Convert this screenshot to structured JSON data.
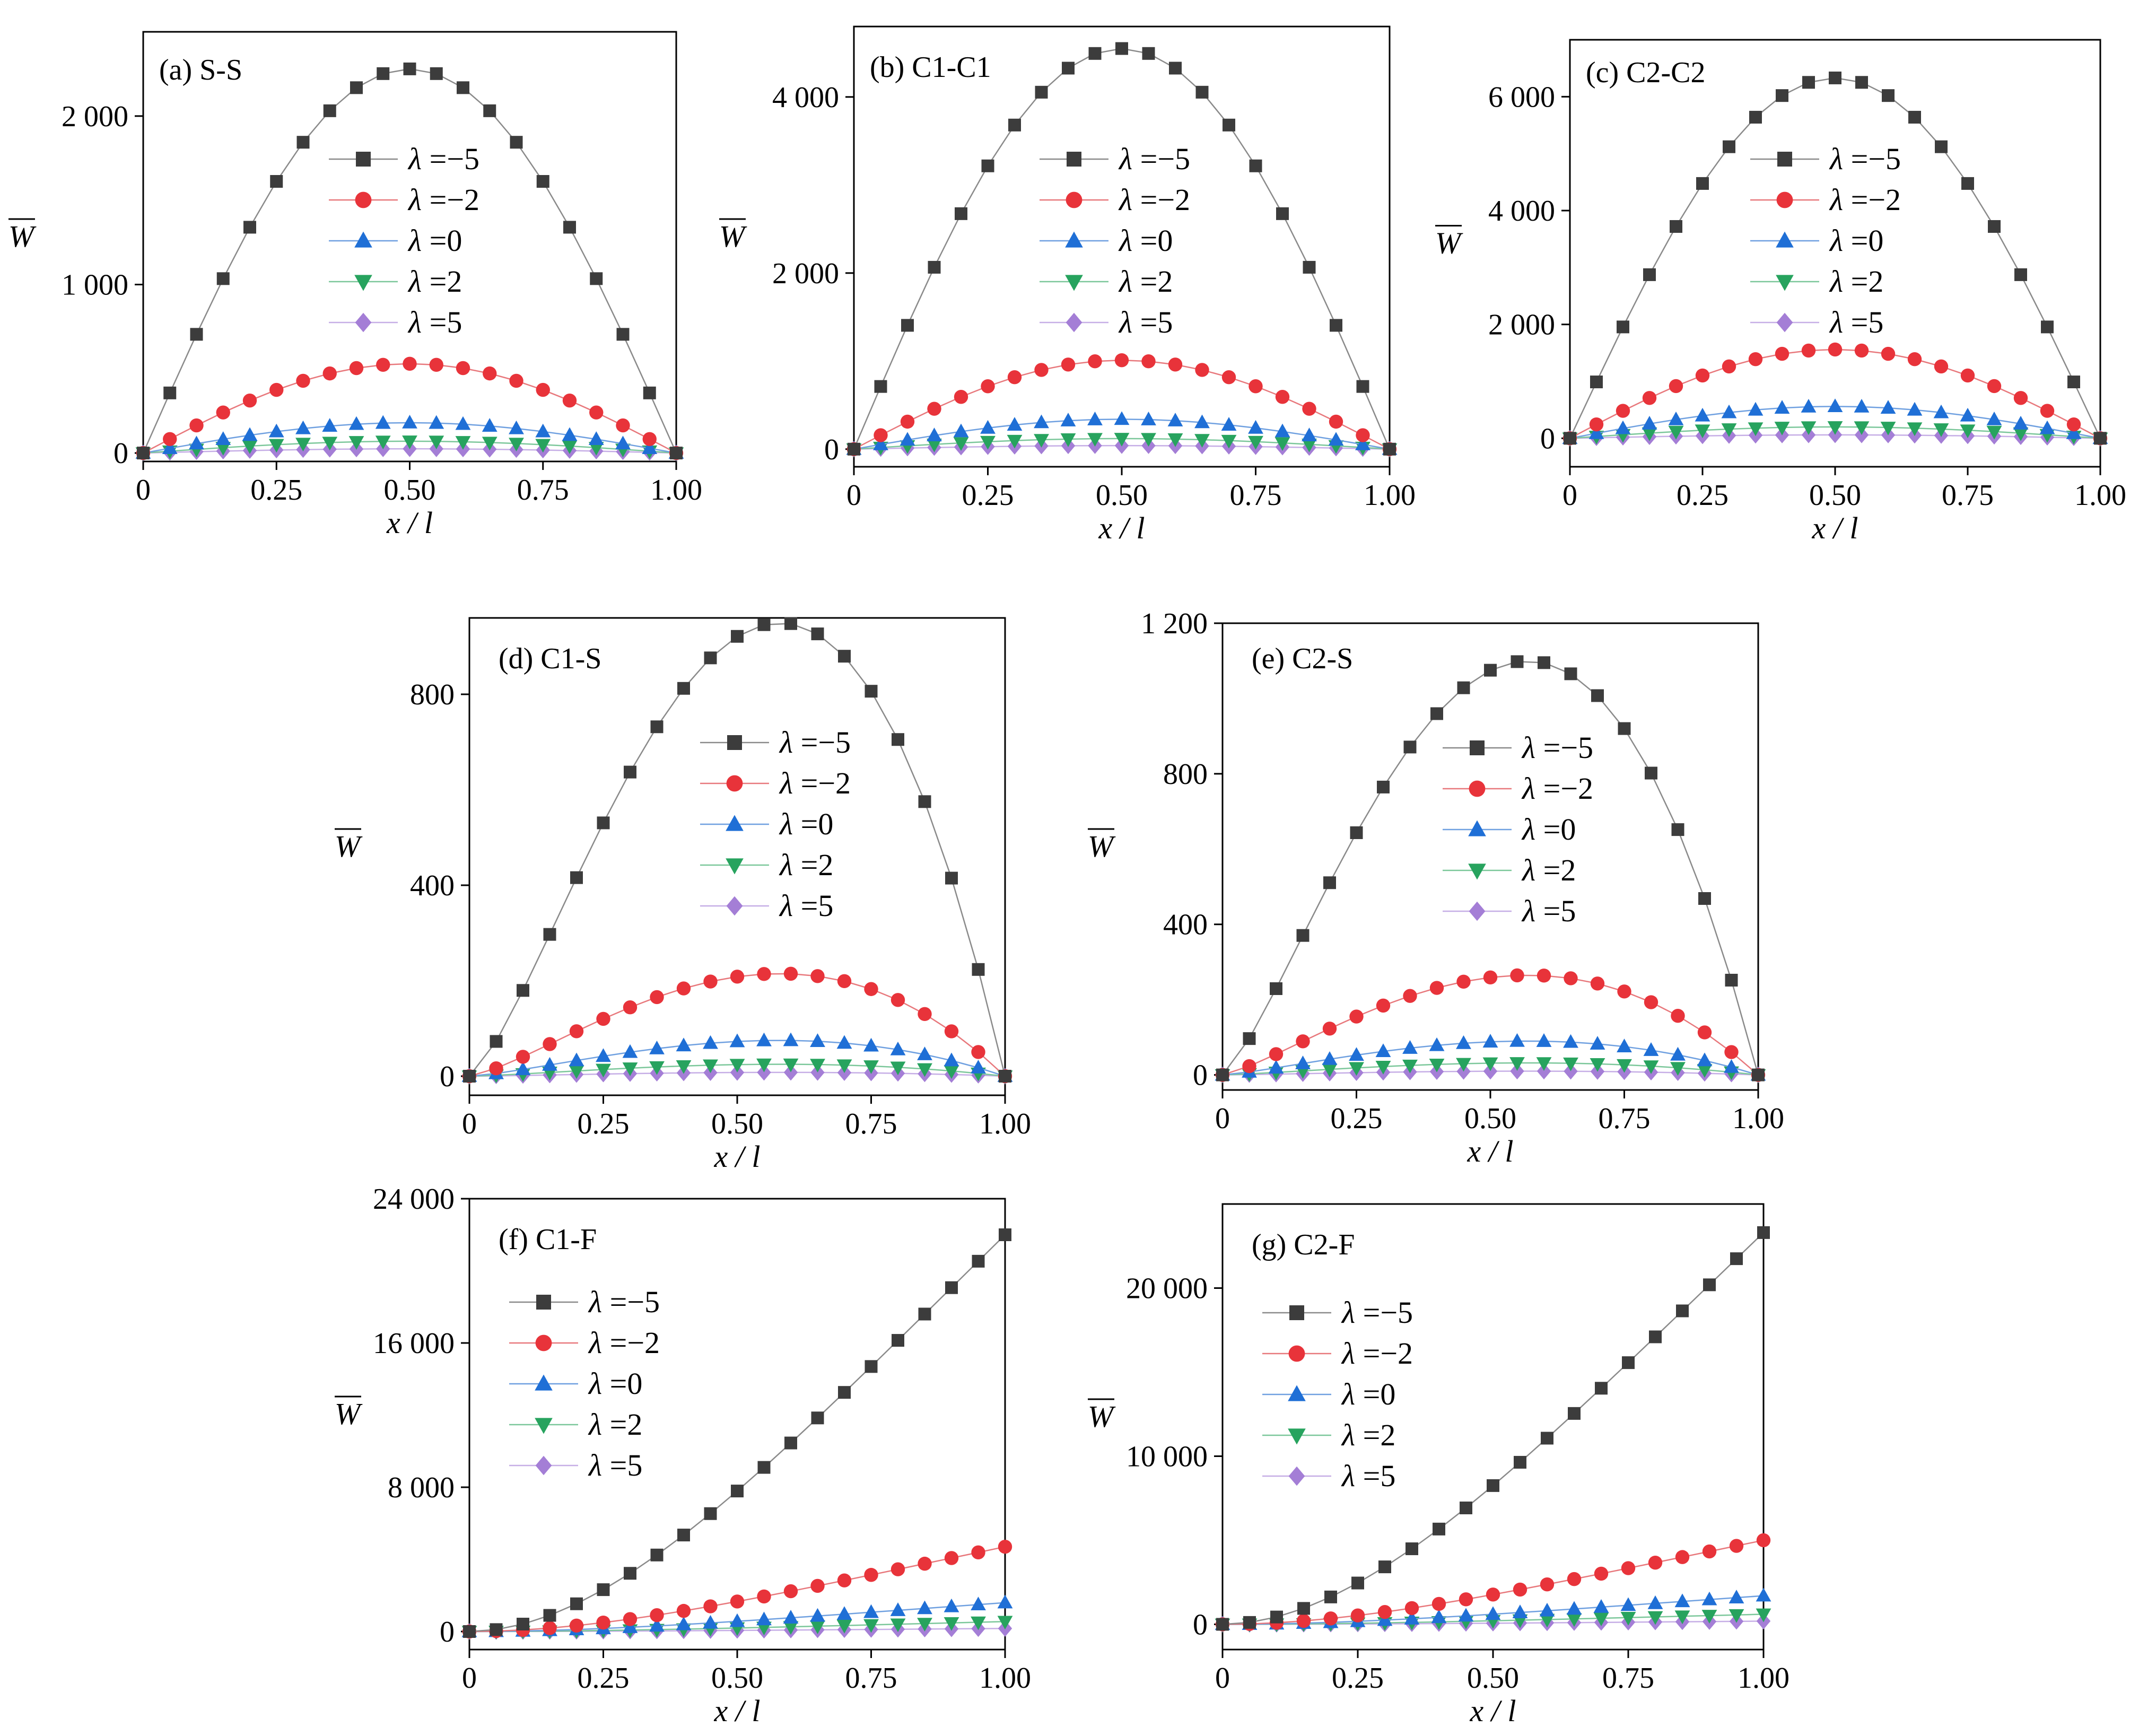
{
  "figure": {
    "x_label": "x / l",
    "y_label": "W"
  },
  "legend": [
    {
      "prefix": "λ",
      "value": "=−5"
    },
    {
      "prefix": "λ",
      "value": "=−2"
    },
    {
      "prefix": "λ",
      "value": "=0"
    },
    {
      "prefix": "λ",
      "value": "=2"
    },
    {
      "prefix": "λ",
      "value": "=5"
    }
  ],
  "series_style": [
    {
      "lambda": -5,
      "color": "#3c3c3c",
      "line": "#8a8a8a",
      "marker": "square"
    },
    {
      "lambda": -2,
      "color": "#e8333a",
      "line": "#e8787c",
      "marker": "circle"
    },
    {
      "lambda": 0,
      "color": "#1f6fd6",
      "line": "#6fa0e0",
      "marker": "triangle-up"
    },
    {
      "lambda": 2,
      "color": "#27a35e",
      "line": "#7bc79a",
      "marker": "triangle-down"
    },
    {
      "lambda": 5,
      "color": "#a47ed6",
      "line": "#c6aee6",
      "marker": "diamond"
    }
  ],
  "chart_data": [
    {
      "type": "line",
      "title": "(a) S-S",
      "xlabel": "x / l",
      "ylabel": "W",
      "xlim": [
        0,
        1
      ],
      "ylim": [
        -50,
        2500
      ],
      "xticks": [
        0,
        0.25,
        0.5,
        0.75,
        1.0
      ],
      "xtick_labels": [
        "0",
        "0.25",
        "0.50",
        "0.75",
        "1.00"
      ],
      "yticks": [
        0,
        1000,
        2000
      ],
      "ytick_labels": [
        "0",
        "1 000",
        "2 000"
      ],
      "shape": "sine",
      "peak_x": 0.5,
      "peaks": [
        2280,
        530,
        180,
        70,
        25
      ],
      "x": [
        0,
        0.05,
        0.1,
        0.15,
        0.2,
        0.25,
        0.3,
        0.35,
        0.4,
        0.45,
        0.5,
        0.55,
        0.6,
        0.65,
        0.7,
        0.75,
        0.8,
        0.85,
        0.9,
        0.95,
        1.0
      ]
    },
    {
      "type": "line",
      "title": "(b) C1-C1",
      "xlabel": "x / l",
      "ylabel": "W",
      "xlim": [
        0,
        1
      ],
      "ylim": [
        -200,
        4800
      ],
      "xticks": [
        0,
        0.25,
        0.5,
        0.75,
        1.0
      ],
      "xtick_labels": [
        "0",
        "0.25",
        "0.50",
        "0.75",
        "1.00"
      ],
      "yticks": [
        0,
        2000,
        4000
      ],
      "ytick_labels": [
        "0",
        "2 000",
        "4 000"
      ],
      "shape": "sine",
      "peak_x": 0.5,
      "peaks": [
        4550,
        1010,
        340,
        120,
        40
      ],
      "x": [
        0,
        0.05,
        0.1,
        0.15,
        0.2,
        0.25,
        0.3,
        0.35,
        0.4,
        0.45,
        0.5,
        0.55,
        0.6,
        0.65,
        0.7,
        0.75,
        0.8,
        0.85,
        0.9,
        0.95,
        1.0
      ]
    },
    {
      "type": "line",
      "title": "(c) C2-C2",
      "xlabel": "x / l",
      "ylabel": "W",
      "xlim": [
        0,
        1
      ],
      "ylim": [
        -500,
        7000
      ],
      "xticks": [
        0,
        0.25,
        0.5,
        0.75,
        1.0
      ],
      "xtick_labels": [
        "0",
        "0.25",
        "0.50",
        "0.75",
        "1.00"
      ],
      "yticks": [
        0,
        2000,
        4000,
        6000
      ],
      "ytick_labels": [
        "0",
        "2 000",
        "4 000",
        "6 000"
      ],
      "shape": "sine",
      "peak_x": 0.5,
      "peaks": [
        6330,
        1560,
        560,
        200,
        60
      ],
      "x": [
        0,
        0.05,
        0.1,
        0.15,
        0.2,
        0.25,
        0.3,
        0.35,
        0.4,
        0.45,
        0.5,
        0.55,
        0.6,
        0.65,
        0.7,
        0.75,
        0.8,
        0.85,
        0.9,
        0.95,
        1.0
      ]
    },
    {
      "type": "line",
      "title": "(d) C1-S",
      "xlabel": "x / l",
      "ylabel": "W",
      "xlim": [
        0,
        1
      ],
      "ylim": [
        -40,
        960
      ],
      "xticks": [
        0,
        0.25,
        0.5,
        0.75,
        1.0
      ],
      "xtick_labels": [
        "0",
        "0.25",
        "0.50",
        "0.75",
        "1.00"
      ],
      "yticks": [
        0,
        400,
        800
      ],
      "ytick_labels": [
        "0",
        "400",
        "800"
      ],
      "shape": "skew",
      "peak_x": 0.58,
      "peaks": [
        950,
        215,
        75,
        25,
        8
      ],
      "x": [
        0,
        0.05,
        0.1,
        0.15,
        0.2,
        0.25,
        0.3,
        0.35,
        0.4,
        0.45,
        0.5,
        0.55,
        0.6,
        0.65,
        0.7,
        0.75,
        0.8,
        0.85,
        0.9,
        0.95,
        1.0
      ]
    },
    {
      "type": "line",
      "title": "(e) C2-S",
      "xlabel": "x / l",
      "ylabel": "W",
      "xlim": [
        0,
        1
      ],
      "ylim": [
        -40,
        1200
      ],
      "xticks": [
        0,
        0.25,
        0.5,
        0.75,
        1.0
      ],
      "xtick_labels": [
        "0",
        "0.25",
        "0.50",
        "0.75",
        "1.00"
      ],
      "yticks": [
        0,
        400,
        800,
        1200
      ],
      "ytick_labels": [
        "0",
        "400",
        "800",
        "1 200"
      ],
      "shape": "skew",
      "peak_x": 0.57,
      "peaks": [
        1100,
        265,
        90,
        32,
        10
      ],
      "x": [
        0,
        0.05,
        0.1,
        0.15,
        0.2,
        0.25,
        0.3,
        0.35,
        0.4,
        0.45,
        0.5,
        0.55,
        0.6,
        0.65,
        0.7,
        0.75,
        0.8,
        0.85,
        0.9,
        0.95,
        1.0
      ]
    },
    {
      "type": "line",
      "title": "(f) C1-F",
      "xlabel": "x / l",
      "ylabel": "W",
      "xlim": [
        0,
        1
      ],
      "ylim": [
        -1000,
        24000
      ],
      "xticks": [
        0,
        0.25,
        0.5,
        0.75,
        1.0
      ],
      "xtick_labels": [
        "0",
        "0.25",
        "0.50",
        "0.75",
        "1.00"
      ],
      "yticks": [
        0,
        8000,
        16000,
        24000
      ],
      "ytick_labels": [
        "0",
        "8 000",
        "16 000",
        "24 000"
      ],
      "shape": "cantilever",
      "peak_x": 1.0,
      "peaks": [
        22000,
        4700,
        1600,
        550,
        170
      ],
      "x": [
        0,
        0.05,
        0.1,
        0.15,
        0.2,
        0.25,
        0.3,
        0.35,
        0.4,
        0.45,
        0.5,
        0.55,
        0.6,
        0.65,
        0.7,
        0.75,
        0.8,
        0.85,
        0.9,
        0.95,
        1.0
      ]
    },
    {
      "type": "line",
      "title": "(g) C2-F",
      "xlabel": "x / l",
      "ylabel": "W",
      "xlim": [
        0,
        1
      ],
      "ylim": [
        -1500,
        25000
      ],
      "xticks": [
        0,
        0.25,
        0.5,
        0.75,
        1.0
      ],
      "xtick_labels": [
        "0",
        "0.25",
        "0.50",
        "0.75",
        "1.00"
      ],
      "yticks": [
        0,
        10000,
        20000
      ],
      "ytick_labels": [
        "0",
        "10 000",
        "20 000"
      ],
      "shape": "cantilever",
      "peak_x": 1.0,
      "peaks": [
        23300,
        5000,
        1700,
        600,
        190
      ],
      "x": [
        0,
        0.05,
        0.1,
        0.15,
        0.2,
        0.25,
        0.3,
        0.35,
        0.4,
        0.45,
        0.5,
        0.55,
        0.6,
        0.65,
        0.7,
        0.75,
        0.8,
        0.85,
        0.9,
        0.95,
        1.0
      ]
    }
  ]
}
